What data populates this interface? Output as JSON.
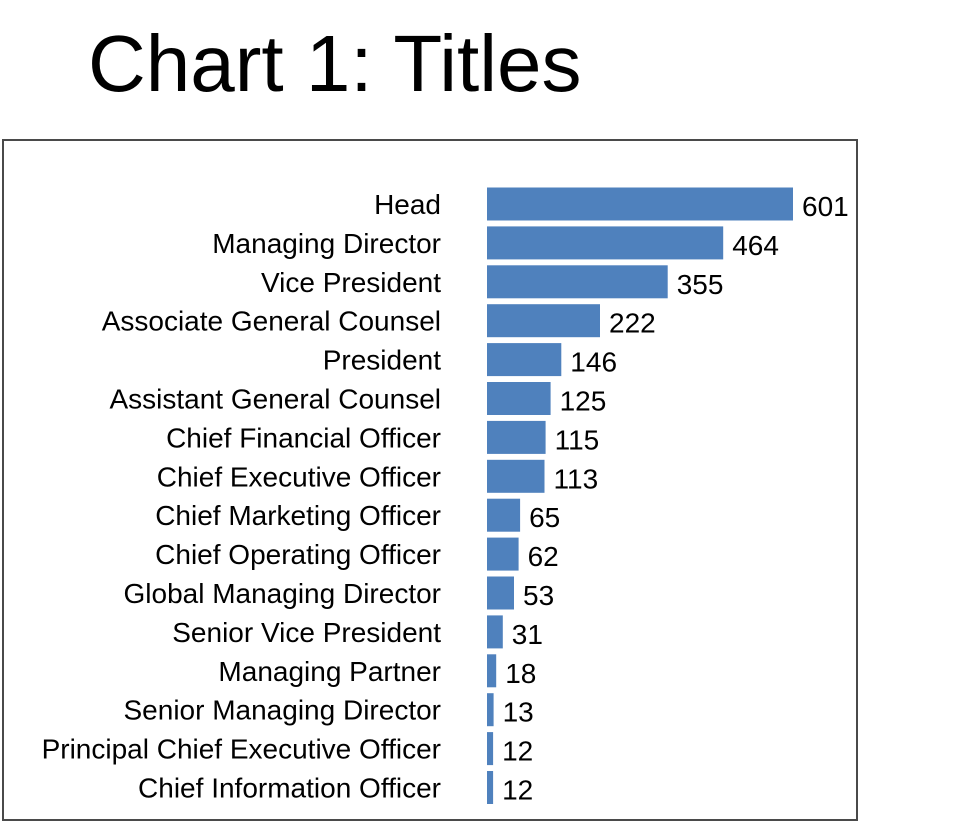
{
  "slide": {
    "title": "Chart 1: Titles"
  },
  "colors": {
    "bar": "#4f81bd",
    "frame": "#4a4a4a",
    "text": "#000000"
  },
  "chart_data": {
    "type": "bar",
    "orientation": "horizontal",
    "title": "Chart 1: Titles",
    "xlabel": "",
    "ylabel": "",
    "grid": false,
    "xlim": [
      0,
      601
    ],
    "categories": [
      "Head",
      "Managing Director",
      "Vice President",
      "Associate General Counsel",
      "President",
      "Assistant General Counsel",
      "Chief Financial Officer",
      "Chief Executive Officer",
      "Chief Marketing Officer",
      "Chief Operating Officer",
      "Global Managing Director",
      "Senior Vice President",
      "Managing Partner",
      "Senior Managing Director",
      "Principal Chief Executive Officer",
      "Chief Information Officer"
    ],
    "values": [
      601,
      464,
      355,
      222,
      146,
      125,
      115,
      113,
      65,
      62,
      53,
      31,
      18,
      13,
      12,
      12
    ]
  }
}
